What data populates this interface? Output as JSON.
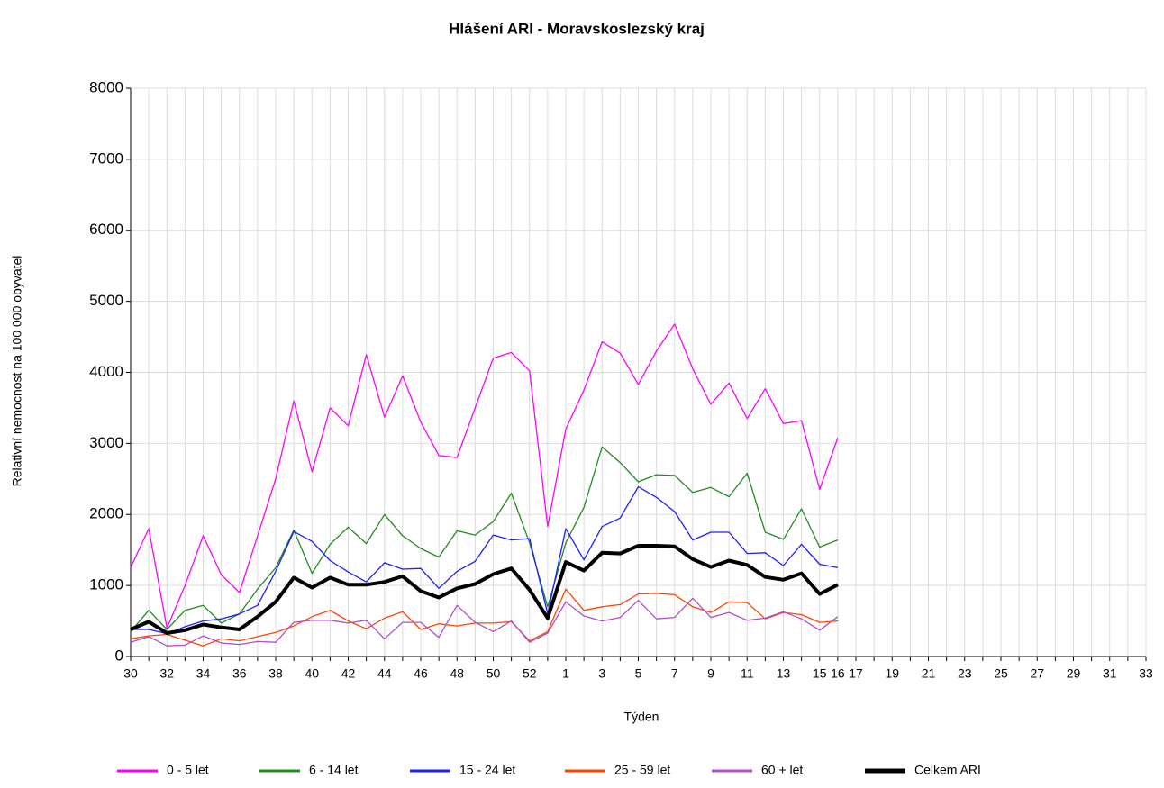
{
  "chart_data": {
    "type": "line",
    "title": "Hlášení ARI  -   Moravskoslezský kraj",
    "x_label": "Týden",
    "y_label": "Relativní nemocnost na 100 000 obyvatel",
    "categories": [
      "30",
      null,
      "32",
      null,
      "34",
      null,
      "36",
      null,
      "38",
      null,
      "40",
      null,
      "42",
      null,
      "44",
      null,
      "46",
      null,
      "48",
      null,
      "50",
      null,
      "52",
      null,
      "1",
      null,
      "3",
      null,
      "5",
      null,
      "7",
      null,
      "9",
      null,
      "11",
      null,
      "13",
      null,
      "15",
      "16",
      "17",
      null,
      "19",
      null,
      "21",
      null,
      "23",
      null,
      "25",
      null,
      "27",
      null,
      "29",
      null,
      "31",
      null,
      "33"
    ],
    "ylim": [
      0,
      8000
    ],
    "yticks": [
      0,
      1000,
      2000,
      3000,
      4000,
      5000,
      6000,
      7000,
      8000
    ],
    "grid": true,
    "legend": "bottom",
    "series": [
      {
        "name": "0 - 5 let",
        "color": "#ff00ff",
        "width": 1.3,
        "values": [
          1250,
          1800,
          400,
          1000,
          1700,
          1150,
          900,
          1700,
          2500,
          3600,
          2600,
          3500,
          3250,
          4250,
          3370,
          3950,
          3300,
          2830,
          2800,
          3500,
          4200,
          4280,
          4020,
          1830,
          3200,
          3750,
          4430,
          4270,
          3830,
          4300,
          4680,
          4050,
          3550,
          3850,
          3350,
          3770,
          3280,
          3320,
          2350,
          3080,
          null,
          null,
          null,
          null,
          null,
          null,
          null,
          null,
          null,
          null,
          null,
          null,
          null,
          null,
          null,
          null,
          null
        ]
      },
      {
        "name": "6 - 14 let",
        "color": "#228b22",
        "width": 1.3,
        "values": [
          350,
          650,
          380,
          650,
          720,
          470,
          600,
          950,
          1250,
          1780,
          1170,
          1580,
          1820,
          1590,
          2000,
          1700,
          1520,
          1400,
          1770,
          1710,
          1900,
          2300,
          1600,
          700,
          1600,
          2100,
          2950,
          2730,
          2460,
          2560,
          2550,
          2310,
          2380,
          2250,
          2580,
          1750,
          1650,
          2080,
          1540,
          1640,
          null,
          null,
          null,
          null,
          null,
          null,
          null,
          null,
          null,
          null,
          null,
          null,
          null,
          null,
          null,
          null,
          null
        ]
      },
      {
        "name": "15 - 24 let",
        "color": "#1e1eff",
        "width": 1.3,
        "values": [
          380,
          380,
          320,
          420,
          500,
          530,
          600,
          720,
          1200,
          1760,
          1620,
          1350,
          1190,
          1050,
          1320,
          1230,
          1240,
          960,
          1200,
          1340,
          1710,
          1640,
          1660,
          600,
          1800,
          1360,
          1830,
          1950,
          2390,
          2240,
          2040,
          1640,
          1750,
          1750,
          1450,
          1460,
          1280,
          1580,
          1300,
          1250,
          null,
          null,
          null,
          null,
          null,
          null,
          null,
          null,
          null,
          null,
          null,
          null,
          null,
          null,
          null,
          null,
          null
        ]
      },
      {
        "name": "25 - 59 let",
        "color": "#ff4500",
        "width": 1.3,
        "values": [
          250,
          290,
          310,
          230,
          150,
          250,
          220,
          280,
          340,
          430,
          560,
          650,
          500,
          390,
          540,
          630,
          380,
          460,
          430,
          470,
          470,
          490,
          220,
          350,
          950,
          650,
          700,
          730,
          880,
          890,
          870,
          700,
          620,
          770,
          760,
          530,
          620,
          590,
          480,
          500,
          null,
          null,
          null,
          null,
          null,
          null,
          null,
          null,
          null,
          null,
          null,
          null,
          null,
          null,
          null,
          null,
          null
        ]
      },
      {
        "name": "60 + let",
        "color": "#b150c8",
        "width": 1.3,
        "values": [
          200,
          280,
          150,
          160,
          290,
          190,
          170,
          210,
          200,
          480,
          510,
          510,
          470,
          510,
          250,
          480,
          480,
          270,
          720,
          480,
          350,
          500,
          200,
          330,
          770,
          570,
          500,
          550,
          790,
          530,
          550,
          820,
          550,
          620,
          510,
          540,
          630,
          530,
          370,
          560,
          null,
          null,
          null,
          null,
          null,
          null,
          null,
          null,
          null,
          null,
          null,
          null,
          null,
          null,
          null,
          null,
          null
        ]
      },
      {
        "name": "Celkem ARI",
        "color": "#000000",
        "width": 4,
        "values": [
          380,
          490,
          330,
          370,
          450,
          410,
          380,
          560,
          770,
          1110,
          970,
          1110,
          1010,
          1010,
          1050,
          1130,
          920,
          830,
          960,
          1020,
          1160,
          1240,
          940,
          540,
          1330,
          1210,
          1460,
          1450,
          1560,
          1560,
          1550,
          1370,
          1260,
          1350,
          1290,
          1120,
          1080,
          1170,
          880,
          1010,
          null,
          null,
          null,
          null,
          null,
          null,
          null,
          null,
          null,
          null,
          null,
          null,
          null,
          null,
          null,
          null,
          null
        ]
      }
    ]
  }
}
